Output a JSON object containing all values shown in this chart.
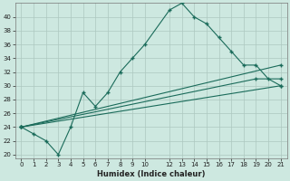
{
  "xlabel": "Humidex (Indice chaleur)",
  "bg_color": "#cde8e0",
  "line_color": "#1a6b5a",
  "grid_color": "#adc8c0",
  "xlim": [
    -0.5,
    21.5
  ],
  "ylim": [
    19.5,
    42
  ],
  "yticks": [
    20,
    22,
    24,
    26,
    28,
    30,
    32,
    34,
    36,
    38,
    40
  ],
  "xticks": [
    0,
    1,
    2,
    3,
    4,
    5,
    6,
    7,
    8,
    9,
    10,
    12,
    13,
    14,
    15,
    16,
    17,
    18,
    19,
    20,
    21
  ],
  "series1_x": [
    0,
    1,
    2,
    3,
    4,
    5,
    6,
    7,
    8,
    9,
    10,
    12,
    13,
    14,
    15,
    16,
    17,
    18,
    19,
    20,
    21
  ],
  "series1_y": [
    24,
    23,
    22,
    20,
    24,
    29,
    27,
    29,
    32,
    34,
    36,
    41,
    42,
    40,
    39,
    37,
    35,
    33,
    33,
    31,
    30
  ],
  "series2_x": [
    0,
    21
  ],
  "series2_y": [
    24,
    33
  ],
  "series3_x": [
    0,
    19,
    21
  ],
  "series3_y": [
    24,
    31,
    31
  ],
  "series4_x": [
    0,
    21
  ],
  "series4_y": [
    24,
    30
  ]
}
